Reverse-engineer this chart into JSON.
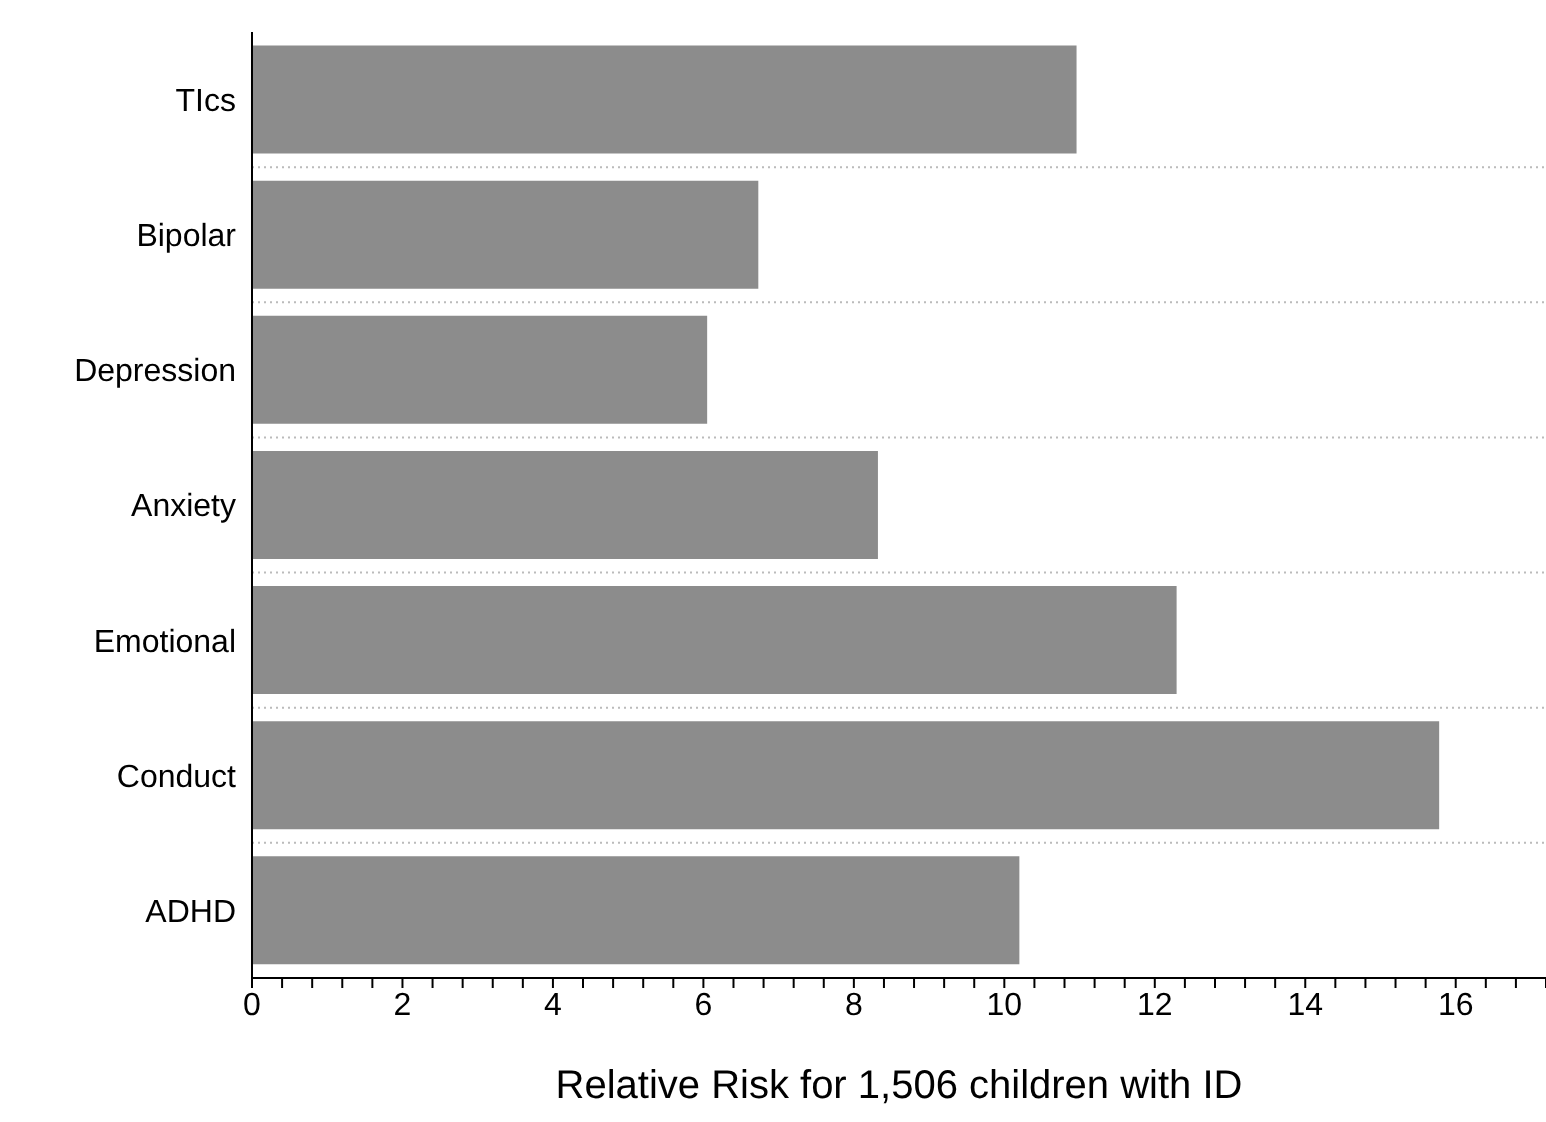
{
  "chart_data": {
    "type": "bar",
    "orientation": "horizontal",
    "xlabel": "Relative Risk for 1,506 children with ID",
    "categories": [
      "TIcs",
      "Bipolar",
      "Depression",
      "Anxiety",
      "Emotional",
      "Conduct",
      "ADHD"
    ],
    "values": [
      10.96,
      6.73,
      6.05,
      8.32,
      12.29,
      15.78,
      10.2
    ],
    "color": "#8c8c8c",
    "xlim": [
      0,
      17.2
    ],
    "xticks": [
      0,
      {
        "value": 0.4,
        "label": null
      },
      {
        "value": 0.8,
        "label": null
      },
      {
        "value": 1.2,
        "label": null
      },
      {
        "value": 1.6,
        "label": null
      },
      2,
      {
        "value": 2.4,
        "label": null
      },
      {
        "value": 2.8,
        "label": null
      },
      {
        "value": 3.2,
        "label": null
      },
      {
        "value": 3.6,
        "label": null
      },
      4,
      {
        "value": 4.4,
        "label": null
      },
      {
        "value": 4.8,
        "label": null
      },
      {
        "value": 5.2,
        "label": null
      },
      {
        "value": 5.6,
        "label": null
      },
      6,
      {
        "value": 6.4,
        "label": null
      },
      {
        "value": 6.8,
        "label": null
      },
      {
        "value": 7.2,
        "label": null
      },
      {
        "value": 7.6,
        "label": null
      },
      8,
      {
        "value": 8.4,
        "label": null
      },
      {
        "value": 8.8,
        "label": null
      },
      {
        "value": 9.2,
        "label": null
      },
      {
        "value": 9.6,
        "label": null
      },
      10,
      {
        "value": 10.4,
        "label": null
      },
      {
        "value": 10.8,
        "label": null
      },
      {
        "value": 11.2,
        "label": null
      },
      {
        "value": 11.6,
        "label": null
      },
      12,
      {
        "value": 12.4,
        "label": null
      },
      {
        "value": 12.8,
        "label": null
      },
      {
        "value": 13.2,
        "label": null
      },
      {
        "value": 13.6,
        "label": null
      },
      14,
      {
        "value": 14.4,
        "label": null
      },
      {
        "value": 14.8,
        "label": null
      },
      {
        "value": 15.2,
        "label": null
      },
      {
        "value": 15.6,
        "label": null
      },
      16,
      {
        "value": 16.4,
        "label": null
      },
      {
        "value": 16.8,
        "label": null
      },
      {
        "value": 17.2,
        "label": null
      }
    ],
    "grid": "y"
  }
}
